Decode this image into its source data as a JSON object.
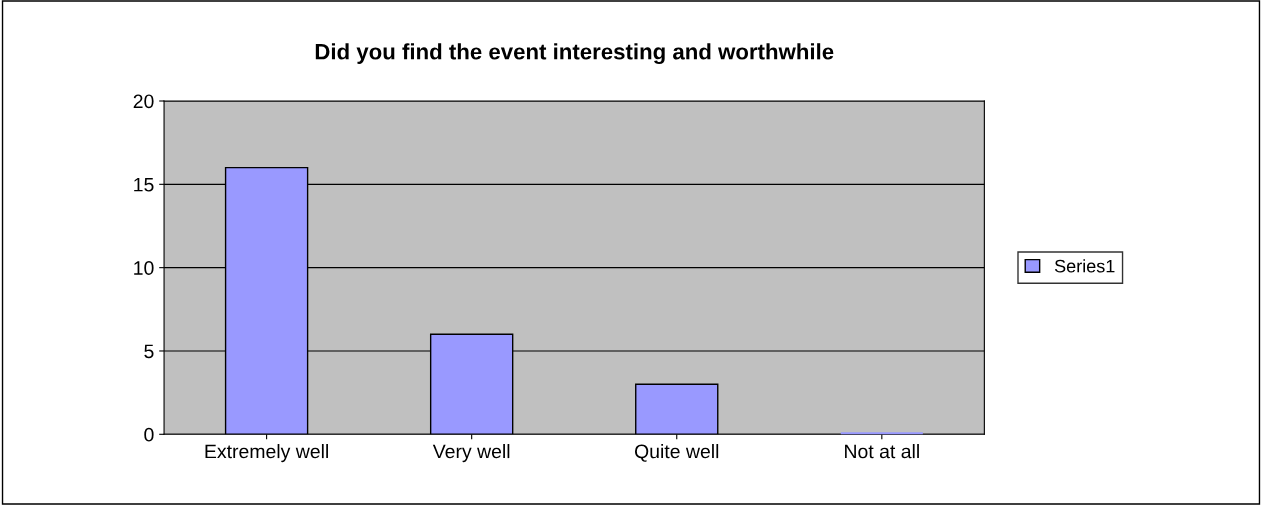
{
  "chart_data": {
    "type": "bar",
    "title": "Did you find the event interesting and worthwhile",
    "categories": [
      "Extremely well",
      "Very well",
      "Quite well",
      "Not at all"
    ],
    "series": [
      {
        "name": "Series1",
        "color": "#9999ff",
        "values": [
          16,
          6,
          3,
          0
        ]
      }
    ],
    "ylim": [
      0,
      20
    ],
    "yticks": [
      0,
      5,
      10,
      15,
      20
    ],
    "grid": "y",
    "legend": "right"
  }
}
